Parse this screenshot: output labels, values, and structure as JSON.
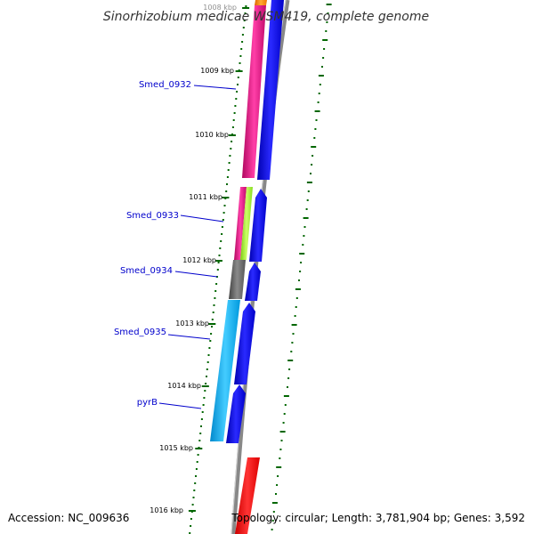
{
  "title": "Sinorhizobium medicae WSM419, complete genome",
  "footer": {
    "accession": "Accession: NC_009636",
    "summary": "Topology: circular; Length: 3,781,904 bp; Genes: 3,592"
  },
  "colors": {
    "backbone": "#888888",
    "tick": "#006600",
    "gene_label": "#0000cc",
    "cds_strand": "#0000ee",
    "pink_feature": "#e0117f",
    "green_feature": "#99ee33",
    "gray_feature": "#666666",
    "cyan_feature": "#00aaee",
    "red_feature": "#ee0000",
    "orange_feature": "#ff8800"
  },
  "ticks": [
    "1008 kbp",
    "1009 kbp",
    "1010 kbp",
    "1011 kbp",
    "1012 kbp",
    "1013 kbp",
    "1014 kbp",
    "1015 kbp",
    "1016 kbp"
  ],
  "genes": [
    {
      "name": "Smed_0932"
    },
    {
      "name": "Smed_0933"
    },
    {
      "name": "Smed_0934"
    },
    {
      "name": "Smed_0935"
    },
    {
      "name": "pyrB"
    }
  ]
}
